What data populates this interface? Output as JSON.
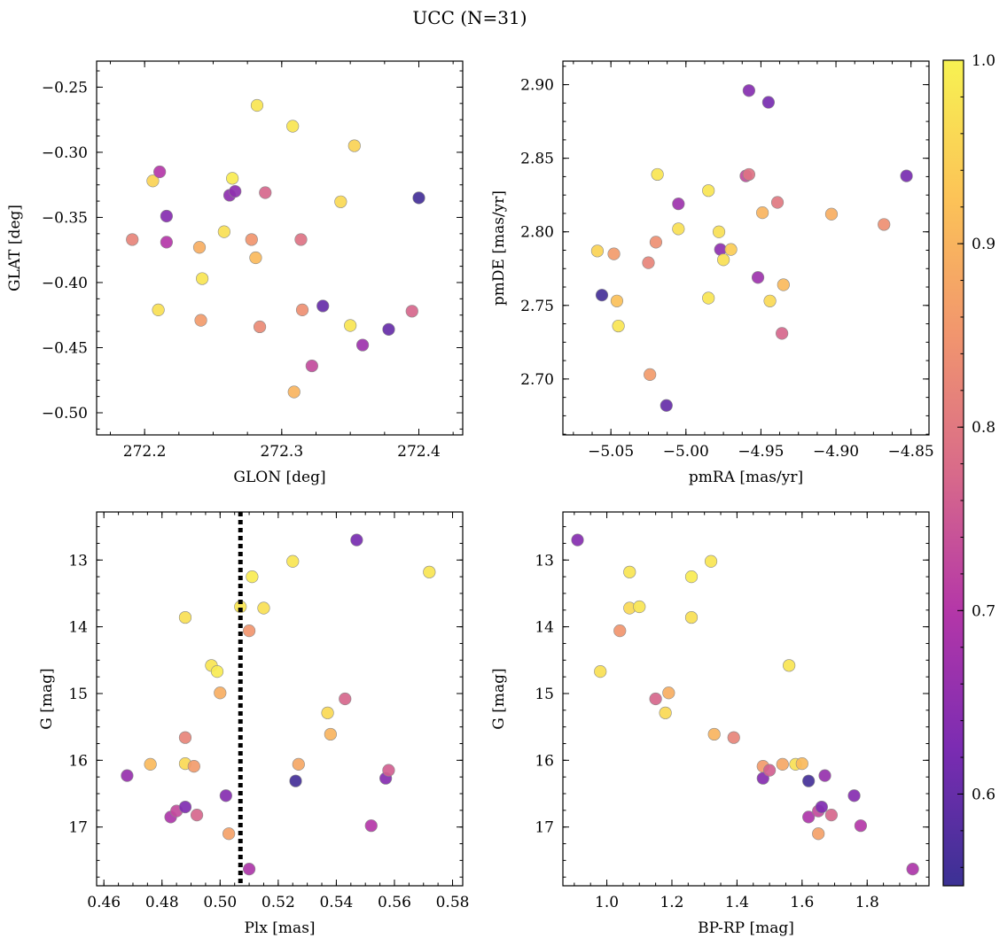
{
  "title": "UCC (N=31)",
  "colormap": {
    "name": "plasma",
    "stops": [
      "#3b3194",
      "#7b2cb2",
      "#b437a8",
      "#d86a8a",
      "#f1956e",
      "#fcc357",
      "#f7f252"
    ],
    "range": [
      0.55,
      1.0
    ],
    "ticks": [
      "0.6",
      "0.7",
      "0.8",
      "0.9",
      "1.0"
    ]
  },
  "chart_data": [
    {
      "type": "scatter",
      "xlabel": "GLON [deg]",
      "ylabel": "GLAT [deg]",
      "xlim": [
        272.165,
        272.432
      ],
      "ylim": [
        -0.517,
        -0.23
      ],
      "x_invert": false,
      "y_invert": false,
      "xticks": [
        272.2,
        272.3,
        272.4
      ],
      "xticklabels": [
        "272.2",
        "272.3",
        "272.4"
      ],
      "yticks": [
        -0.25,
        -0.3,
        -0.35,
        -0.4,
        -0.45,
        -0.5
      ],
      "yticklabels": [
        "−0.25",
        "−0.30",
        "−0.35",
        "−0.40",
        "−0.45",
        "−0.50"
      ],
      "x": [
        272.191,
        272.206,
        272.21,
        272.211,
        272.216,
        272.216,
        272.24,
        272.241,
        272.242,
        272.258,
        272.262,
        272.264,
        272.266,
        272.278,
        272.281,
        272.282,
        272.284,
        272.288,
        272.308,
        272.309,
        272.314,
        272.315,
        272.322,
        272.33,
        272.343,
        272.35,
        272.353,
        272.359,
        272.378,
        272.395,
        272.4
      ],
      "y": [
        -0.367,
        -0.322,
        -0.421,
        -0.315,
        -0.349,
        -0.369,
        -0.373,
        -0.429,
        -0.397,
        -0.361,
        -0.333,
        -0.32,
        -0.33,
        -0.367,
        -0.381,
        -0.264,
        -0.434,
        -0.331,
        -0.28,
        -0.484,
        -0.367,
        -0.421,
        -0.464,
        -0.418,
        -0.338,
        -0.433,
        -0.295,
        -0.448,
        -0.436,
        -0.422,
        -0.335
      ],
      "c": [
        0.82,
        0.95,
        0.97,
        0.7,
        0.64,
        0.7,
        0.89,
        0.86,
        0.98,
        0.97,
        0.65,
        0.99,
        0.65,
        0.85,
        0.91,
        0.98,
        0.83,
        0.77,
        0.98,
        0.9,
        0.79,
        0.84,
        0.73,
        0.6,
        0.96,
        0.98,
        0.95,
        0.67,
        0.6,
        0.77,
        0.56
      ]
    },
    {
      "type": "scatter",
      "xlabel": "pmRA [mas/yr]",
      "ylabel": "pmDE [mas/yr]",
      "xlim": [
        -5.082,
        -4.838
      ],
      "ylim": [
        2.662,
        2.916
      ],
      "x_invert": false,
      "y_invert": false,
      "xticks": [
        -5.05,
        -5.0,
        -4.95,
        -4.9,
        -4.85
      ],
      "xticklabels": [
        "−5.05",
        "−5.00",
        "−4.95",
        "−4.90",
        "−4.85"
      ],
      "yticks": [
        2.7,
        2.75,
        2.8,
        2.85,
        2.9
      ],
      "yticklabels": [
        "2.70",
        "2.75",
        "2.80",
        "2.85",
        "2.90"
      ],
      "x": [
        -5.059,
        -5.056,
        -5.048,
        -5.046,
        -5.045,
        -5.025,
        -5.024,
        -5.02,
        -5.019,
        -5.013,
        -5.005,
        -5.005,
        -4.985,
        -4.985,
        -4.978,
        -4.977,
        -4.975,
        -4.97,
        -4.96,
        -4.958,
        -4.958,
        -4.952,
        -4.949,
        -4.945,
        -4.944,
        -4.939,
        -4.936,
        -4.935,
        -4.903,
        -4.868,
        -4.853
      ],
      "y": [
        2.787,
        2.757,
        2.785,
        2.753,
        2.736,
        2.779,
        2.703,
        2.793,
        2.839,
        2.682,
        2.802,
        2.819,
        2.828,
        2.755,
        2.8,
        2.788,
        2.781,
        2.788,
        2.838,
        2.839,
        2.896,
        2.769,
        2.813,
        2.888,
        2.753,
        2.82,
        2.731,
        2.764,
        2.812,
        2.805,
        2.838
      ],
      "c": [
        0.95,
        0.56,
        0.86,
        0.92,
        0.98,
        0.82,
        0.86,
        0.84,
        0.98,
        0.6,
        0.97,
        0.67,
        0.98,
        0.98,
        0.97,
        0.65,
        0.97,
        0.94,
        0.73,
        0.79,
        0.64,
        0.67,
        0.9,
        0.62,
        0.96,
        0.8,
        0.77,
        0.91,
        0.89,
        0.84,
        0.62
      ]
    },
    {
      "type": "scatter",
      "xlabel": "Plx [mas]",
      "ylabel": "G [mag]",
      "xlim": [
        0.4575,
        0.5835
      ],
      "ylim": [
        17.88,
        12.28
      ],
      "x_invert": false,
      "y_invert": true,
      "xticks": [
        0.46,
        0.48,
        0.5,
        0.52,
        0.54,
        0.56,
        0.58
      ],
      "xticklabels": [
        "0.46",
        "0.48",
        "0.50",
        "0.52",
        "0.54",
        "0.56",
        "0.58"
      ],
      "yticks": [
        13,
        14,
        15,
        16,
        17
      ],
      "yticklabels": [
        "13",
        "14",
        "15",
        "16",
        "17"
      ],
      "vline": 0.507,
      "x": [
        0.468,
        0.476,
        0.483,
        0.485,
        0.488,
        0.488,
        0.488,
        0.488,
        0.491,
        0.492,
        0.497,
        0.499,
        0.5,
        0.502,
        0.503,
        0.507,
        0.51,
        0.51,
        0.511,
        0.515,
        0.525,
        0.526,
        0.527,
        0.537,
        0.538,
        0.543,
        0.547,
        0.552,
        0.557,
        0.558,
        0.572
      ],
      "y": [
        16.23,
        16.06,
        16.85,
        16.76,
        13.86,
        15.66,
        16.05,
        16.7,
        16.09,
        16.82,
        14.58,
        14.67,
        14.99,
        16.53,
        17.1,
        13.7,
        14.06,
        17.63,
        13.25,
        13.72,
        13.02,
        16.31,
        16.06,
        15.29,
        15.61,
        15.08,
        12.7,
        16.98,
        16.27,
        16.15,
        13.18
      ],
      "c": [
        0.66,
        0.91,
        0.69,
        0.73,
        0.97,
        0.82,
        0.96,
        0.63,
        0.86,
        0.77,
        0.98,
        0.99,
        0.89,
        0.64,
        0.87,
        0.98,
        0.85,
        0.69,
        0.99,
        0.97,
        0.98,
        0.56,
        0.88,
        0.96,
        0.9,
        0.77,
        0.62,
        0.7,
        0.64,
        0.76,
        0.98
      ]
    },
    {
      "type": "scatter",
      "xlabel": "BP-RP [mag]",
      "ylabel": "G [mag]",
      "xlim": [
        0.865,
        1.99
      ],
      "ylim": [
        17.88,
        12.28
      ],
      "x_invert": false,
      "y_invert": true,
      "xticks": [
        1.0,
        1.2,
        1.4,
        1.6,
        1.8
      ],
      "xticklabels": [
        "1.0",
        "1.2",
        "1.4",
        "1.6",
        "1.8"
      ],
      "yticks": [
        13,
        14,
        15,
        16,
        17
      ],
      "yticklabels": [
        "13",
        "14",
        "15",
        "16",
        "17"
      ],
      "x": [
        0.91,
        0.98,
        1.04,
        1.07,
        1.07,
        1.1,
        1.15,
        1.18,
        1.19,
        1.26,
        1.26,
        1.32,
        1.33,
        1.39,
        1.48,
        1.48,
        1.5,
        1.54,
        1.56,
        1.58,
        1.6,
        1.62,
        1.62,
        1.65,
        1.65,
        1.66,
        1.67,
        1.69,
        1.76,
        1.78,
        1.94
      ],
      "y": [
        12.7,
        14.67,
        14.06,
        13.18,
        13.72,
        13.7,
        15.08,
        15.29,
        14.99,
        13.25,
        13.86,
        13.02,
        15.61,
        15.66,
        16.09,
        16.27,
        16.15,
        16.06,
        14.58,
        16.06,
        16.05,
        16.31,
        16.85,
        16.76,
        17.1,
        16.7,
        16.23,
        16.82,
        16.53,
        16.98,
        17.63
      ],
      "c": [
        0.64,
        0.97,
        0.85,
        0.98,
        0.96,
        0.98,
        0.77,
        0.96,
        0.89,
        0.99,
        0.97,
        0.98,
        0.9,
        0.82,
        0.86,
        0.64,
        0.76,
        0.88,
        0.98,
        0.97,
        0.91,
        0.56,
        0.69,
        0.73,
        0.87,
        0.63,
        0.66,
        0.77,
        0.64,
        0.7,
        0.69
      ]
    }
  ]
}
